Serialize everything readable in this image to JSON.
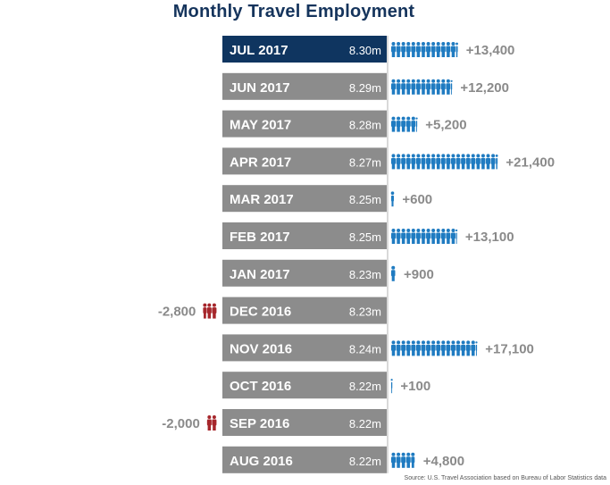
{
  "title": "Monthly Travel Employment",
  "source": "Source: U.S. Travel Association based on Bureau of Labor Statistics data",
  "colors": {
    "highlight": "#0f3560",
    "bar": "#8c8c8c",
    "gain_icon": "#1f7bc1",
    "loss_icon": "#a6262b",
    "change_text": "#8a8a8a"
  },
  "chart_data": {
    "type": "table",
    "title": "Monthly Travel Employment",
    "categories": [
      "JUL 2017",
      "JUN 2017",
      "MAY 2017",
      "APR 2017",
      "MAR 2017",
      "FEB 2017",
      "JAN 2017",
      "DEC 2016",
      "NOV 2016",
      "OCT 2016",
      "SEP 2016",
      "AUG 2016"
    ],
    "rows": [
      {
        "month": "JUL 2017",
        "employment": "8.30m",
        "change": 13400,
        "change_label": "+13,400",
        "highlight": true
      },
      {
        "month": "JUN 2017",
        "employment": "8.29m",
        "change": 12200,
        "change_label": "+12,200"
      },
      {
        "month": "MAY 2017",
        "employment": "8.28m",
        "change": 5200,
        "change_label": "+5,200"
      },
      {
        "month": "APR 2017",
        "employment": "8.27m",
        "change": 21400,
        "change_label": "+21,400"
      },
      {
        "month": "MAR 2017",
        "employment": "8.25m",
        "change": 600,
        "change_label": "+600"
      },
      {
        "month": "FEB 2017",
        "employment": "8.25m",
        "change": 13100,
        "change_label": "+13,100"
      },
      {
        "month": "JAN 2017",
        "employment": "8.23m",
        "change": 900,
        "change_label": "+900"
      },
      {
        "month": "DEC 2016",
        "employment": "8.23m",
        "change": -2800,
        "change_label": "-2,800"
      },
      {
        "month": "NOV 2016",
        "employment": "8.24m",
        "change": 17100,
        "change_label": "+17,100"
      },
      {
        "month": "OCT 2016",
        "employment": "8.22m",
        "change": 100,
        "change_label": "+100"
      },
      {
        "month": "SEP 2016",
        "employment": "8.22m",
        "change": -2000,
        "change_label": "-2,000"
      },
      {
        "month": "AUG 2016",
        "employment": "8.22m",
        "change": 4800,
        "change_label": "+4,800"
      }
    ]
  }
}
